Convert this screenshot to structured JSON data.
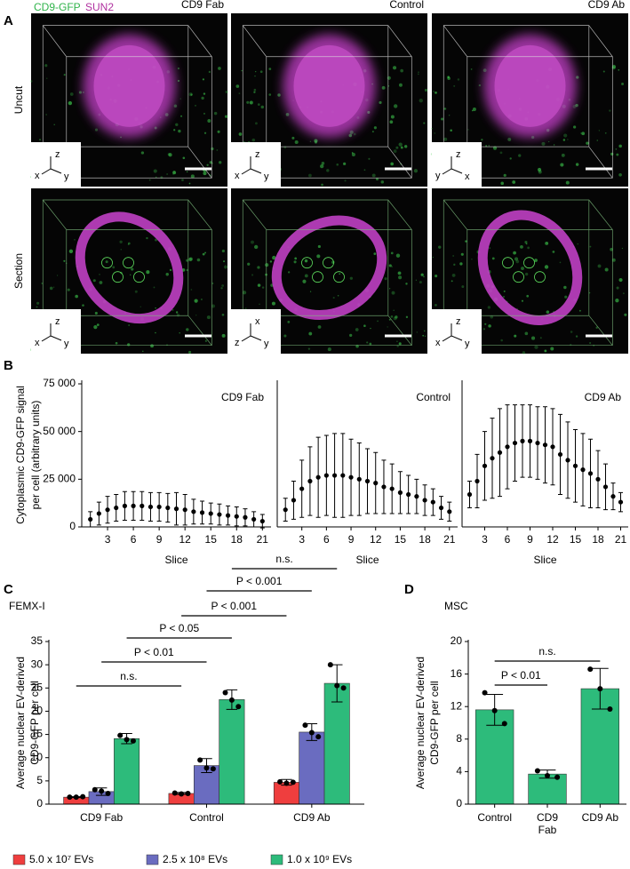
{
  "panels": [
    "A",
    "B",
    "C",
    "D"
  ],
  "panel_a": {
    "legend": [
      "CD9-GFP",
      "SUN2"
    ],
    "columns": [
      "CD9 Fab",
      "Control",
      "CD9 Ab"
    ],
    "rows": [
      "Uncut",
      "Section"
    ],
    "triads": [
      [
        "z",
        "x",
        "y"
      ],
      [
        "z",
        "x",
        "y"
      ],
      [
        "z",
        "y",
        "x"
      ],
      [
        "z",
        "x",
        "y"
      ],
      [
        "x",
        "z",
        "y"
      ],
      [
        "z",
        "x",
        "y"
      ]
    ]
  },
  "chart_data": [
    {
      "type": "line",
      "title": "CD9 Fab",
      "x": [
        1,
        2,
        3,
        4,
        5,
        6,
        7,
        8,
        9,
        10,
        11,
        12,
        13,
        14,
        15,
        16,
        17,
        18,
        19,
        20,
        21
      ],
      "series": [
        {
          "color": "#000000",
          "values": [
            4000,
            7000,
            9000,
            10000,
            11000,
            11000,
            11000,
            10500,
            10500,
            10000,
            9500,
            9000,
            8000,
            7500,
            7000,
            6500,
            6000,
            5500,
            5000,
            4000,
            3000
          ],
          "errors": [
            4000,
            6000,
            7000,
            7000,
            7500,
            7500,
            7500,
            7500,
            7500,
            7500,
            8500,
            8000,
            6500,
            6000,
            5500,
            5500,
            5000,
            5000,
            4500,
            4000,
            3500
          ]
        }
      ],
      "xlim": [
        0,
        22
      ],
      "xticks": [
        3,
        6,
        9,
        12,
        15,
        18,
        21
      ],
      "xlabel": "Slice",
      "ylim": [
        0,
        75000
      ],
      "yticks": [
        0,
        {
          "value": 25000,
          "label": "25 000"
        },
        {
          "value": 50000,
          "label": "50 000"
        },
        {
          "value": 75000,
          "label": "75 000"
        }
      ],
      "ylabel": [
        "Cytoplasmic  CD9-GFP signal",
        "per cell (arbitrary units)"
      ]
    },
    {
      "type": "line",
      "title": "Control",
      "x": [
        1,
        2,
        3,
        4,
        5,
        6,
        7,
        8,
        9,
        10,
        11,
        12,
        13,
        14,
        15,
        16,
        17,
        18,
        19,
        20,
        21
      ],
      "series": [
        {
          "color": "#000000",
          "values": [
            9000,
            14000,
            20000,
            24000,
            26000,
            27000,
            27000,
            27000,
            26000,
            25000,
            24000,
            23000,
            21000,
            20000,
            18000,
            17000,
            16000,
            14000,
            13000,
            10000,
            8000
          ],
          "errors": [
            6000,
            10000,
            15000,
            18000,
            21000,
            21000,
            22000,
            22000,
            20000,
            19000,
            17000,
            16000,
            14000,
            13000,
            11000,
            10000,
            9000,
            8000,
            7000,
            6000,
            5000
          ]
        }
      ],
      "xlim": [
        0,
        22
      ],
      "xticks": [
        3,
        6,
        9,
        12,
        15,
        18,
        21
      ],
      "xlabel": "Slice",
      "ylim": [
        0,
        75000
      ]
    },
    {
      "type": "line",
      "title": "CD9 Ab",
      "x": [
        1,
        2,
        3,
        4,
        5,
        6,
        7,
        8,
        9,
        10,
        11,
        12,
        13,
        14,
        15,
        16,
        17,
        18,
        19,
        20,
        21
      ],
      "series": [
        {
          "color": "#000000",
          "values": [
            17000,
            24000,
            32000,
            36000,
            39000,
            42000,
            44000,
            45000,
            45000,
            44000,
            43000,
            42000,
            38000,
            35000,
            32000,
            30000,
            28000,
            25000,
            21000,
            16000,
            13000
          ],
          "errors": [
            7000,
            14000,
            18000,
            21000,
            23000,
            22000,
            20000,
            19000,
            19000,
            19000,
            20000,
            20000,
            21000,
            20000,
            19000,
            19000,
            18000,
            15000,
            12000,
            7000,
            5000
          ]
        }
      ],
      "xlim": [
        0,
        22
      ],
      "xticks": [
        3,
        6,
        9,
        12,
        15,
        18,
        21
      ],
      "xlabel": "Slice",
      "ylim": [
        0,
        75000
      ]
    },
    {
      "type": "bar",
      "title": "FEMX-I",
      "categories": [
        "CD9 Fab",
        "Control",
        "CD9 Ab"
      ],
      "series": [
        {
          "name": "5.0 x 10⁷ EVs",
          "color": "#ef3e3e",
          "values": [
            1.5,
            2.3,
            4.7
          ],
          "errors": [
            0.1,
            0.2,
            0.6
          ],
          "points": [
            [
              1.5,
              1.5,
              1.6
            ],
            [
              2.4,
              2.2,
              2.3
            ],
            [
              4.8,
              4.5,
              4.7
            ]
          ]
        },
        {
          "name": "2.5 x 10⁸ EVs",
          "color": "#6a6cc0",
          "values": [
            2.7,
            8.3,
            15.5
          ],
          "errors": [
            0.8,
            1.5,
            1.8
          ],
          "points": [
            [
              3.1,
              2.8,
              2.3
            ],
            [
              9.5,
              7.8,
              7.6
            ],
            [
              17.0,
              15.4,
              14.5
            ]
          ]
        },
        {
          "name": "1.0 x 10⁹ EVs",
          "color": "#2dbb7b",
          "values": [
            14.1,
            22.5,
            26.0
          ],
          "errors": [
            1.1,
            2.1,
            4.0
          ],
          "points": [
            [
              14.8,
              13.9,
              13.6
            ],
            [
              24.0,
              22.4,
              21.0
            ],
            [
              30.0,
              25.5,
              25.0
            ]
          ]
        }
      ],
      "ylim": [
        0,
        35
      ],
      "yticks": [
        0,
        5,
        10,
        15,
        20,
        25,
        30,
        35
      ],
      "ylabel": [
        "Average nuclear EV-derived",
        "CD9-GFP per cell"
      ],
      "comparisons": [
        "n.s.",
        "P < 0.01",
        "P < 0.05",
        "P < 0.001",
        "P < 0.001",
        "n.s."
      ]
    },
    {
      "type": "bar",
      "title": "MSC",
      "categories": [
        "Control",
        "CD9\nFab",
        "CD9 Ab"
      ],
      "series": [
        {
          "color": "#2dbb7b",
          "values": [
            11.6,
            3.7,
            14.2
          ],
          "errors": [
            1.9,
            0.5,
            2.5
          ],
          "points": [
            [
              13.7,
              11.5,
              9.9
            ],
            [
              4.1,
              3.5,
              3.3
            ],
            [
              16.6,
              14.2,
              11.7
            ]
          ]
        }
      ],
      "ylim": [
        0,
        20
      ],
      "yticks": [
        0,
        4,
        8,
        12,
        16,
        20
      ],
      "ylabel": [
        "Average nuclear EV-derived",
        "CD9-GFP per cell"
      ],
      "comparisons": [
        "P < 0.01",
        "n.s."
      ]
    }
  ]
}
